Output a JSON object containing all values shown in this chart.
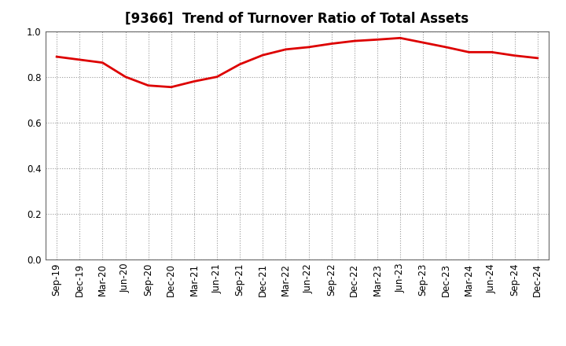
{
  "title": "[9366]  Trend of Turnover Ratio of Total Assets",
  "labels": [
    "Sep-19",
    "Dec-19",
    "Mar-20",
    "Jun-20",
    "Sep-20",
    "Dec-20",
    "Mar-21",
    "Jun-21",
    "Sep-21",
    "Dec-21",
    "Mar-22",
    "Jun-22",
    "Sep-22",
    "Dec-22",
    "Mar-23",
    "Jun-23",
    "Sep-23",
    "Dec-23",
    "Mar-24",
    "Jun-24",
    "Sep-24",
    "Dec-24"
  ],
  "values": [
    0.888,
    0.875,
    0.862,
    0.8,
    0.762,
    0.755,
    0.78,
    0.8,
    0.855,
    0.895,
    0.92,
    0.93,
    0.945,
    0.957,
    0.963,
    0.97,
    0.95,
    0.93,
    0.908,
    0.908,
    0.893,
    0.882
  ],
  "line_color": "#dd0000",
  "line_width": 2.0,
  "bg_color": "#ffffff",
  "plot_bg_color": "#ffffff",
  "grid_color": "#999999",
  "ylim": [
    0.0,
    1.0
  ],
  "yticks": [
    0.0,
    0.2,
    0.4,
    0.6,
    0.8,
    1.0
  ],
  "title_fontsize": 12,
  "tick_fontsize": 8.5
}
